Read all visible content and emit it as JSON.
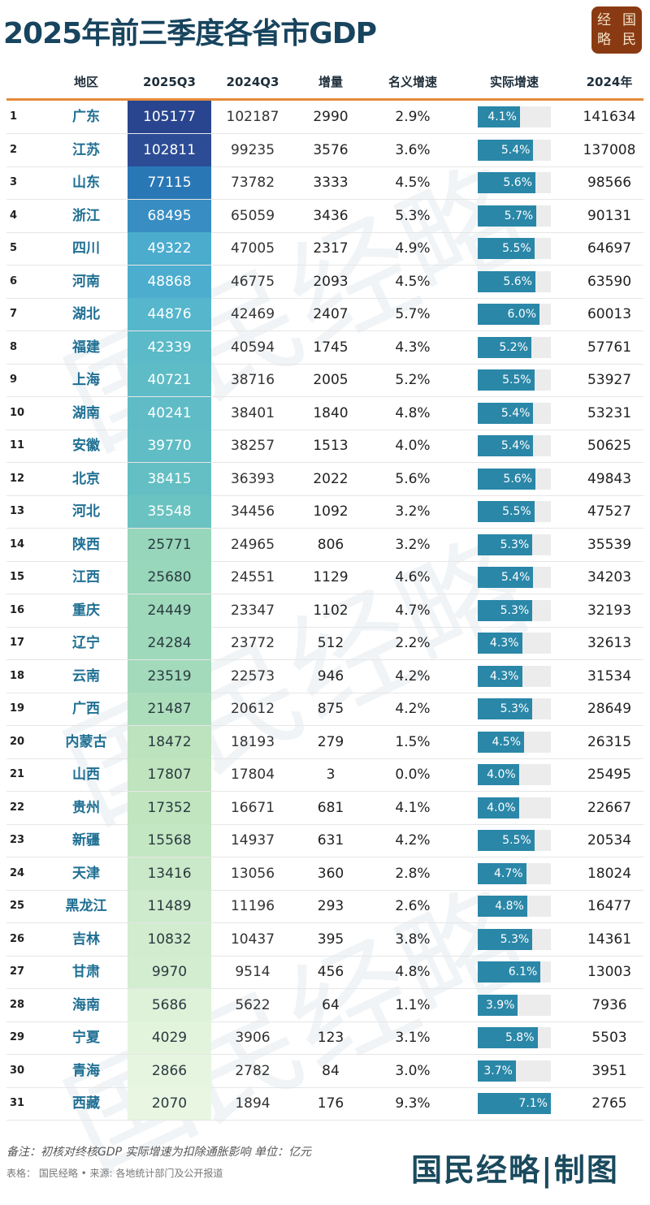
{
  "title": "2025年前三季度各省市GDP",
  "logo_text": [
    "经",
    "国",
    "略",
    "民"
  ],
  "chart_data": {
    "type": "table",
    "title": "2025年前三季度各省市GDP",
    "columns": [
      "",
      "地区",
      "2025Q3",
      "2024Q3",
      "增量",
      "名义增速",
      "实际增速",
      "2024年"
    ],
    "rows": [
      [
        1,
        "广东",
        105177,
        102187,
        2990,
        "2.9%",
        4.1,
        141634
      ],
      [
        2,
        "江苏",
        102811,
        99235,
        3576,
        "3.6%",
        5.4,
        137008
      ],
      [
        3,
        "山东",
        77115,
        73782,
        3333,
        "4.5%",
        5.6,
        98566
      ],
      [
        4,
        "浙江",
        68495,
        65059,
        3436,
        "5.3%",
        5.7,
        90131
      ],
      [
        5,
        "四川",
        49322,
        47005,
        2317,
        "4.9%",
        5.5,
        64697
      ],
      [
        6,
        "河南",
        48868,
        46775,
        2093,
        "4.5%",
        5.6,
        63590
      ],
      [
        7,
        "湖北",
        44876,
        42469,
        2407,
        "5.7%",
        6.0,
        60013
      ],
      [
        8,
        "福建",
        42339,
        40594,
        1745,
        "4.3%",
        5.2,
        57761
      ],
      [
        9,
        "上海",
        40721,
        38716,
        2005,
        "5.2%",
        5.5,
        53927
      ],
      [
        10,
        "湖南",
        40241,
        38401,
        1840,
        "4.8%",
        5.4,
        53231
      ],
      [
        11,
        "安徽",
        39770,
        38257,
        1513,
        "4.0%",
        5.4,
        50625
      ],
      [
        12,
        "北京",
        38415,
        36393,
        2022,
        "5.6%",
        5.6,
        49843
      ],
      [
        13,
        "河北",
        35548,
        34456,
        1092,
        "3.2%",
        5.5,
        47527
      ],
      [
        14,
        "陕西",
        25771,
        24965,
        806,
        "3.2%",
        5.3,
        35539
      ],
      [
        15,
        "江西",
        25680,
        24551,
        1129,
        "4.6%",
        5.4,
        34203
      ],
      [
        16,
        "重庆",
        24449,
        23347,
        1102,
        "4.7%",
        5.3,
        32193
      ],
      [
        17,
        "辽宁",
        24284,
        23772,
        512,
        "2.2%",
        4.3,
        32613
      ],
      [
        18,
        "云南",
        23519,
        22573,
        946,
        "4.2%",
        4.3,
        31534
      ],
      [
        19,
        "广西",
        21487,
        20612,
        875,
        "4.2%",
        5.3,
        28649
      ],
      [
        20,
        "内蒙古",
        18472,
        18193,
        279,
        "1.5%",
        4.5,
        26315
      ],
      [
        21,
        "山西",
        17807,
        17804,
        3,
        "0.0%",
        4.0,
        25495
      ],
      [
        22,
        "贵州",
        17352,
        16671,
        681,
        "4.1%",
        4.0,
        22667
      ],
      [
        23,
        "新疆",
        15568,
        14937,
        631,
        "4.2%",
        5.5,
        20534
      ],
      [
        24,
        "天津",
        13416,
        13056,
        360,
        "2.8%",
        4.7,
        18024
      ],
      [
        25,
        "黑龙江",
        11489,
        11196,
        293,
        "2.6%",
        4.8,
        16477
      ],
      [
        26,
        "吉林",
        10832,
        10437,
        395,
        "3.8%",
        5.3,
        14361
      ],
      [
        27,
        "甘肃",
        9970,
        9514,
        456,
        "4.8%",
        6.1,
        13003
      ],
      [
        28,
        "海南",
        5686,
        5622,
        64,
        "1.1%",
        3.9,
        7936
      ],
      [
        29,
        "宁夏",
        4029,
        3906,
        123,
        "3.1%",
        5.8,
        5503
      ],
      [
        30,
        "青海",
        2866,
        2782,
        84,
        "3.0%",
        3.7,
        3951
      ],
      [
        31,
        "西藏",
        2070,
        1894,
        176,
        "9.3%",
        7.1,
        2765
      ]
    ],
    "bar_max": 7.1,
    "bar_color": "#2a87a8"
  },
  "watermark": "国民经略",
  "footer": {
    "note": "备注：初核对终核GDP 实际增速为扣除通胀影响 单位：亿元",
    "source": "表格：  国民经略 • 来源: 各地统计部门及公开报道",
    "brand": "国民经略|制图"
  }
}
